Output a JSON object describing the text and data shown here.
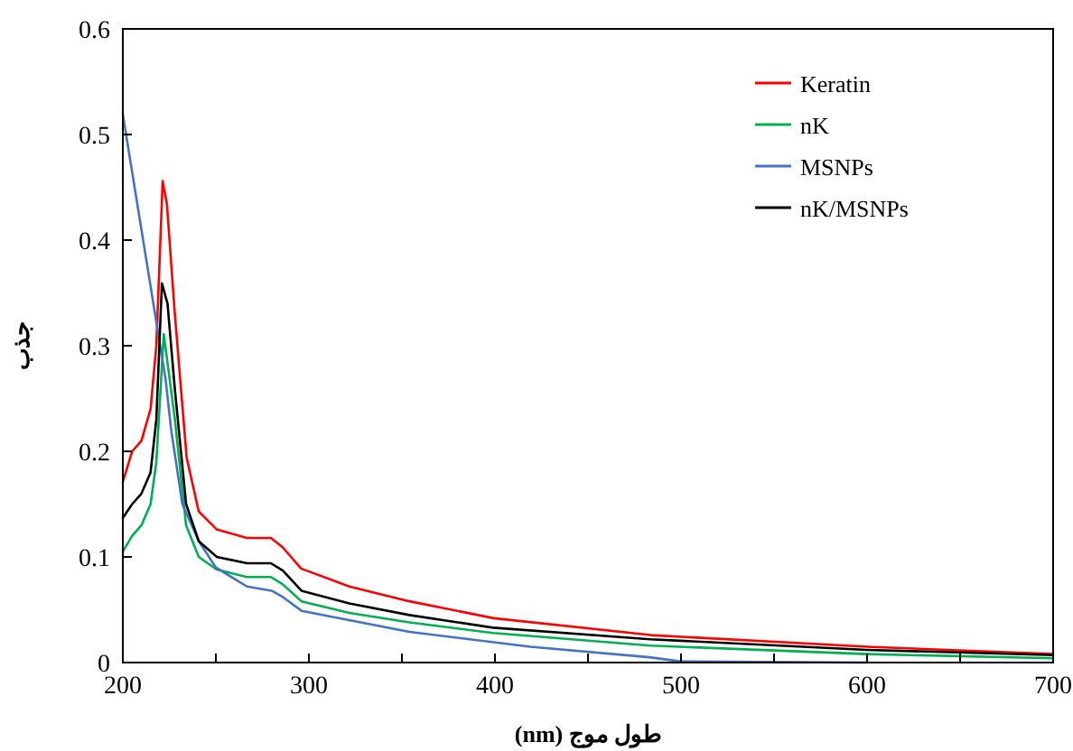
{
  "chart_data": {
    "type": "line",
    "xlabel": "طول موج (nm)",
    "ylabel": "جذب",
    "xlim": [
      200,
      700
    ],
    "ylim": [
      0,
      0.6
    ],
    "xticks": [
      200,
      {
        "value": 250,
        "label": null
      },
      300,
      {
        "value": 350,
        "label": null
      },
      400,
      {
        "value": 450,
        "label": null
      },
      500,
      {
        "value": 550,
        "label": null
      },
      600,
      {
        "value": 650,
        "label": null
      },
      700
    ],
    "yticks": [
      0,
      0.1,
      0.2,
      0.3,
      0.4,
      0.5,
      0.6
    ],
    "grid": false,
    "legend": "top right",
    "marker": "none",
    "line_style": "solid",
    "series": [
      {
        "name": "Keratin",
        "color": "#ff0000",
        "x": [
          200,
          205,
          210,
          214.9,
          218,
          221.4,
          223.7,
          227.9,
          234.3,
          240.8,
          250.5,
          266.7,
          279.6,
          286,
          295.8,
          321.7,
          354,
          399.3,
          483.5,
          600,
          700
        ],
        "values": [
          0.171,
          0.2,
          0.21,
          0.24,
          0.3,
          0.456,
          0.434,
          0.331,
          0.194,
          0.143,
          0.126,
          0.118,
          0.118,
          0.109,
          0.089,
          0.072,
          0.058,
          0.042,
          0.026,
          0.015,
          0.008
        ]
      },
      {
        "name": "nK",
        "color": "#00b050",
        "x": [
          200,
          205,
          210,
          214.9,
          218,
          222,
          228,
          234,
          240.8,
          250.5,
          266.7,
          279.6,
          286,
          296,
          321.7,
          354,
          399,
          483.5,
          600,
          700
        ],
        "values": [
          0.105,
          0.12,
          0.13,
          0.15,
          0.19,
          0.311,
          0.23,
          0.13,
          0.1,
          0.088,
          0.081,
          0.081,
          0.074,
          0.058,
          0.047,
          0.038,
          0.028,
          0.016,
          0.008,
          0.004
        ]
      },
      {
        "name": "MSNPs",
        "color": "#4472c4",
        "x": [
          200,
          223,
          226,
          232,
          240.8,
          250,
          266.7,
          280,
          286,
          296,
          354,
          419,
          483,
          500,
          600
        ],
        "values": [
          0.519,
          0.268,
          0.22,
          0.15,
          0.115,
          0.09,
          0.072,
          0.068,
          0.062,
          0.049,
          0.029,
          0.015,
          0.005,
          0.001,
          0
        ]
      },
      {
        "name": "nK/MSNPs",
        "color": "#000000",
        "x": [
          200,
          205,
          210,
          214.9,
          218,
          221,
          224,
          227.9,
          234,
          240.8,
          250.5,
          266.7,
          279.6,
          286,
          296,
          321.7,
          354,
          399,
          483.5,
          600,
          700
        ],
        "values": [
          0.137,
          0.15,
          0.16,
          0.18,
          0.23,
          0.359,
          0.34,
          0.26,
          0.15,
          0.115,
          0.1,
          0.094,
          0.094,
          0.087,
          0.068,
          0.056,
          0.045,
          0.033,
          0.022,
          0.012,
          0.007
        ]
      }
    ]
  }
}
